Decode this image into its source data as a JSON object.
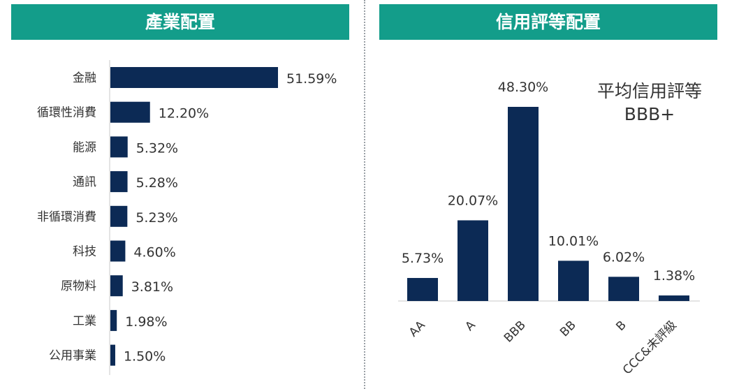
{
  "panels": {
    "industry_title": "產業配置",
    "rating_title": "信用評等配置",
    "rating_note_line1": "平均信用評等",
    "rating_note_line2": "BBB+"
  },
  "colors": {
    "header_bg": "#139d8a",
    "bar": "#0c2a55"
  },
  "chart_data": [
    {
      "type": "bar",
      "orientation": "horizontal",
      "title": "產業配置",
      "categories": [
        "金融",
        "循環性消費",
        "能源",
        "通訊",
        "非循環消費",
        "科技",
        "原物料",
        "工業",
        "公用事業"
      ],
      "values": [
        51.59,
        12.2,
        5.32,
        5.28,
        5.23,
        4.6,
        3.81,
        1.98,
        1.5
      ],
      "data_labels": [
        "51.59%",
        "12.20%",
        "5.32%",
        "5.28%",
        "5.23%",
        "4.60%",
        "3.81%",
        "1.98%",
        "1.50%"
      ],
      "unit": "%",
      "grid": false,
      "legend": "none"
    },
    {
      "type": "bar",
      "orientation": "vertical",
      "title": "信用評等配置",
      "categories": [
        "AA",
        "A",
        "BBB",
        "BB",
        "B",
        "CCC&未評級"
      ],
      "values": [
        5.73,
        20.07,
        48.3,
        10.01,
        6.02,
        1.38
      ],
      "data_labels": [
        "5.73%",
        "20.07%",
        "48.30%",
        "10.01%",
        "6.02%",
        "1.38%"
      ],
      "unit": "%",
      "grid": false,
      "legend": "none"
    }
  ]
}
